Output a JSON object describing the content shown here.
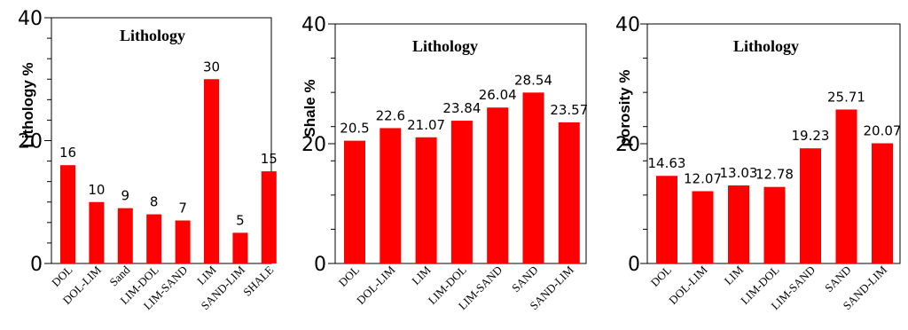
{
  "chart_data": [
    {
      "type": "bar",
      "title": "Lithology",
      "ylabel": "Lithology %",
      "ylim": [
        0,
        40
      ],
      "yticks": [
        "0",
        "20",
        "40"
      ],
      "color": "#ff0000",
      "categories": [
        "DOL",
        "DOL-LIM",
        "Sand",
        "LIM-DOL",
        "LIM-SAND",
        "LIM",
        "SAND-LIM",
        "SHALE"
      ],
      "values": [
        16,
        10,
        9,
        8,
        7,
        30,
        5,
        15
      ],
      "data_labels": [
        "16",
        "10",
        "9",
        "8",
        "7",
        "30",
        "5",
        "15"
      ]
    },
    {
      "type": "bar",
      "title": "Lithology",
      "ylabel": "Shale %",
      "ylim": [
        0,
        40
      ],
      "yticks": [
        "0",
        "20",
        "40"
      ],
      "color": "#ff0000",
      "categories": [
        "DOL",
        "DOL-LIM",
        "LIM",
        "LIM-DOL",
        "LIM-SAND",
        "SAND",
        "SAND-LIM"
      ],
      "values": [
        20.5,
        22.6,
        21.07,
        23.84,
        26.04,
        28.54,
        23.57
      ],
      "data_labels": [
        "20.5",
        "22.6",
        "21.07",
        "23.84",
        "26.04",
        "28.54",
        "23.57"
      ]
    },
    {
      "type": "bar",
      "title": "Lithology",
      "ylabel": "porosity %",
      "ylim": [
        0,
        40
      ],
      "yticks": [
        "0",
        "20",
        "40"
      ],
      "color": "#ff0000",
      "categories": [
        "DOL",
        "DOL-LIM",
        "LIM",
        "LIM-DOL",
        "LIM-SAND",
        "SAND",
        "SAND-LIM"
      ],
      "values": [
        14.63,
        12.07,
        13.03,
        12.78,
        19.23,
        25.71,
        20.07
      ],
      "data_labels": [
        "14.63",
        "12.07",
        "13.03",
        "12.78",
        "19.23",
        "25.71",
        "20.07"
      ]
    }
  ]
}
